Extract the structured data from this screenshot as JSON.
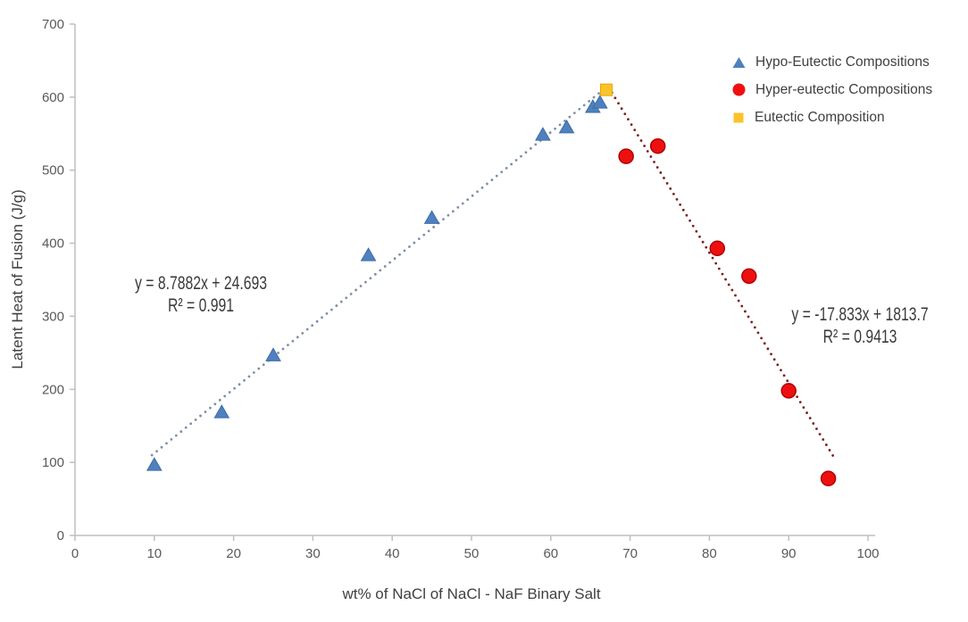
{
  "chart_data": {
    "type": "scatter",
    "title": "",
    "xlabel": "wt% of NaCl of NaCl - NaF Binary Salt",
    "ylabel": "Latent Heat of Fusion (J/g)",
    "xlim": [
      0,
      100
    ],
    "ylim": [
      0,
      700
    ],
    "x_ticks": [
      0,
      10,
      20,
      30,
      40,
      50,
      60,
      70,
      80,
      90,
      100
    ],
    "y_ticks": [
      0,
      100,
      200,
      300,
      400,
      500,
      600,
      700
    ],
    "grid": "off",
    "legend_position": "top-right",
    "axis_color": "#BFBFBF",
    "tick_label_color": "#595959",
    "series": [
      {
        "name": "Hypo-Eutectic Compositions",
        "marker": "triangle",
        "color": "#4E81BD",
        "edge_color": "#3D6DA8",
        "points": [
          [
            10,
            97
          ],
          [
            18.5,
            169
          ],
          [
            25,
            247
          ],
          [
            37,
            384
          ],
          [
            45,
            435
          ],
          [
            59,
            549
          ],
          [
            62,
            559
          ],
          [
            65.3,
            587
          ],
          [
            66.2,
            593
          ]
        ]
      },
      {
        "name": "Hyper-eutectic Compositions",
        "marker": "circle",
        "color": "#EE1010",
        "edge_color": "#B00000",
        "points": [
          [
            69.5,
            519
          ],
          [
            73.5,
            533
          ],
          [
            81,
            393
          ],
          [
            85,
            355
          ],
          [
            90,
            198
          ],
          [
            95,
            78
          ]
        ]
      },
      {
        "name": "Eutectic Composition",
        "marker": "square",
        "color": "#FBC32A",
        "edge_color": "#E2A900",
        "points": [
          [
            67,
            610
          ]
        ]
      }
    ],
    "trendlines": [
      {
        "series": "Hypo-Eutectic Compositions",
        "equation": "y = 8.7882x + 24.693",
        "r2": "R² = 0.991",
        "slope": 8.7882,
        "intercept": 24.693,
        "x_start": 9.7,
        "x_end": 67.3,
        "color": "#7E8FA5",
        "style": "dotted"
      },
      {
        "series": "Hyper-eutectic Compositions",
        "equation": "y = -17.833x + 1813.7",
        "r2": "R² = 0.9413",
        "slope": -17.833,
        "intercept": 1813.7,
        "x_start": 67.3,
        "x_end": 95.8,
        "color": "#7E2020",
        "style": "dotted"
      }
    ]
  }
}
